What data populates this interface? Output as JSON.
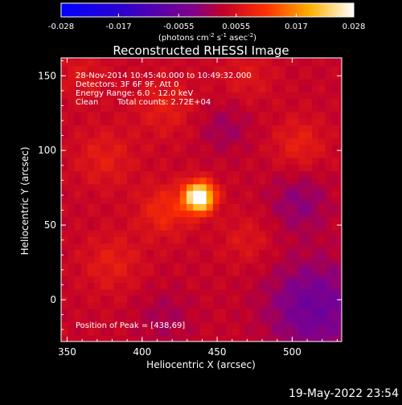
{
  "chart_data": {
    "type": "heatmap",
    "title": "Reconstructed RHESSI Image",
    "xlabel": "Heliocentric X (arcsec)",
    "ylabel": "Heliocentric Y (arcsec)",
    "xlim": [
      346,
      533
    ],
    "ylim": [
      -28,
      162
    ],
    "xticks": [
      350,
      400,
      450,
      500
    ],
    "yticks": [
      0,
      50,
      100,
      150
    ],
    "colorbar": {
      "ticks": [
        "-0.028",
        "-0.017",
        "-0.0055",
        "0.0055",
        "0.017",
        "0.028"
      ],
      "range": [
        -0.028,
        0.028
      ],
      "unit_label": "(photons cm",
      "unit_exp1": "-2",
      "unit_mid": " s",
      "unit_exp2": "-1",
      "unit_mid2": " asec",
      "unit_exp3": "-2",
      "unit_end": ")"
    },
    "info": {
      "line1": "28-Nov-2014 10:45:40.000 to 10:49:32.000",
      "line2": "Detectors: 3F 6F 9F, Att 0",
      "line3": "Energy Range: 6.0 - 12.0 keV",
      "line4_a": "Clean",
      "line4_b": "Total counts: 2.72E+04"
    },
    "peak_label": "Position of Peak = [438,69]",
    "peak": {
      "x": 438,
      "y": 69,
      "value": 0.028
    },
    "background_level": 0.0035,
    "pixel_size_arcsec": 4.4
  },
  "footer": {
    "timestamp": "19-May-2022 23:54"
  }
}
